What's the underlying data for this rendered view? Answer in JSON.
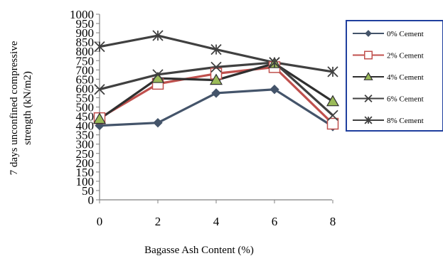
{
  "chart_data": {
    "type": "line",
    "title": "",
    "xlabel": "Bagasse Ash Content (%)",
    "ylabel_line1": "7 days unconfined compressive",
    "ylabel_line2": "strength (kN/m2)",
    "x": [
      0,
      2,
      4,
      6,
      8
    ],
    "x_ticks": [
      "0",
      "2",
      "4",
      "6",
      "8"
    ],
    "y_ticks": [
      "0",
      "50",
      "100",
      "150",
      "200",
      "250",
      "300",
      "350",
      "400",
      "450",
      "500",
      "550",
      "600",
      "650",
      "700",
      "750",
      "800",
      "850",
      "900",
      "950",
      "1000"
    ],
    "ylim": [
      0,
      1000
    ],
    "grid": false,
    "legend_position": "right",
    "series": [
      {
        "name": "0% Cement",
        "values": [
          400,
          415,
          575,
          595,
          395
        ],
        "color": "#44546a",
        "marker": "diamond"
      },
      {
        "name": "2% Cement",
        "values": [
          440,
          625,
          680,
          715,
          410
        ],
        "color": "#c0504d",
        "marker": "square"
      },
      {
        "name": "4% Cement",
        "values": [
          435,
          655,
          645,
          735,
          530
        ],
        "color": "#2f2f2f",
        "marker": "triangle"
      },
      {
        "name": "6% Cement",
        "values": [
          595,
          675,
          715,
          740,
          455
        ],
        "color": "#404040",
        "marker": "x"
      },
      {
        "name": "8% Cement",
        "values": [
          825,
          885,
          810,
          740,
          690
        ],
        "color": "#404040",
        "marker": "star"
      }
    ]
  }
}
